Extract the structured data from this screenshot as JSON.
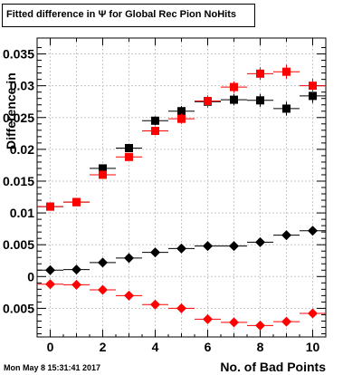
{
  "header": {
    "title": "Fitted difference in  Ψ  for Global Rec Pion NoHits"
  },
  "footer": {
    "timestamp": "Mon May  8 15:31:41 2017"
  },
  "chart_data": {
    "type": "scatter",
    "title": "Fitted difference in  Ψ  for Global Rec Pion NoHits",
    "xlabel": "No. of Bad Points",
    "ylabel": "Difference in",
    "xlim": [
      -0.5,
      10.5
    ],
    "ylim": [
      -0.0095,
      0.0375
    ],
    "x_ticks": [
      0,
      2,
      4,
      6,
      8,
      10
    ],
    "x_tick_labels": [
      "0",
      "2",
      "4",
      "6",
      "8",
      "10"
    ],
    "y_ticks": [
      -0.005,
      0,
      0.005,
      0.01,
      0.015,
      0.02,
      0.025,
      0.03,
      0.035
    ],
    "y_tick_labels": [
      "0.005",
      "0",
      "0.005",
      "0.01",
      "0.015",
      "0.02",
      "0.025",
      "0.03",
      "0.035"
    ],
    "grid": true,
    "x": [
      0,
      1,
      2,
      3,
      4,
      5,
      6,
      7,
      8,
      9,
      10
    ],
    "series": [
      {
        "marker": "square",
        "color": "#000000",
        "values": [
          0.011,
          0.0117,
          0.017,
          0.0202,
          0.0245,
          0.026,
          0.0275,
          0.0278,
          0.0277,
          0.0264,
          0.0284
        ],
        "errors": [
          0.0004,
          0.0004,
          0.0006,
          0.0006,
          0.0007,
          0.0008,
          0.0009,
          0.0009,
          0.001,
          0.0011,
          0.0011
        ]
      },
      {
        "marker": "square",
        "color": "#ff0000",
        "values": [
          0.011,
          0.0117,
          0.016,
          0.0188,
          0.0229,
          0.0248,
          0.0276,
          0.0298,
          0.0319,
          0.0322,
          0.03
        ],
        "errors": [
          0.0004,
          0.0004,
          0.0006,
          0.0006,
          0.0007,
          0.0008,
          0.0009,
          0.0009,
          0.001,
          0.0011,
          0.0011
        ]
      },
      {
        "marker": "diamond",
        "color": "#000000",
        "values": [
          0.001,
          0.0011,
          0.0022,
          0.0029,
          0.0038,
          0.0044,
          0.0048,
          0.0048,
          0.0054,
          0.0065,
          0.0072
        ],
        "errors": [
          0.0002,
          0.0002,
          0.0002,
          0.0002,
          0.0003,
          0.0003,
          0.0003,
          0.0003,
          0.0004,
          0.0005,
          0.0006
        ]
      },
      {
        "marker": "diamond",
        "color": "#ff0000",
        "values": [
          -0.0012,
          -0.0013,
          -0.0021,
          -0.003,
          -0.0044,
          -0.005,
          -0.0067,
          -0.0072,
          -0.0077,
          -0.0071,
          -0.0058
        ],
        "errors": [
          0.0002,
          0.0002,
          0.0002,
          0.0002,
          0.0003,
          0.0003,
          0.0003,
          0.0003,
          0.0004,
          0.0005,
          0.0006
        ]
      }
    ]
  }
}
